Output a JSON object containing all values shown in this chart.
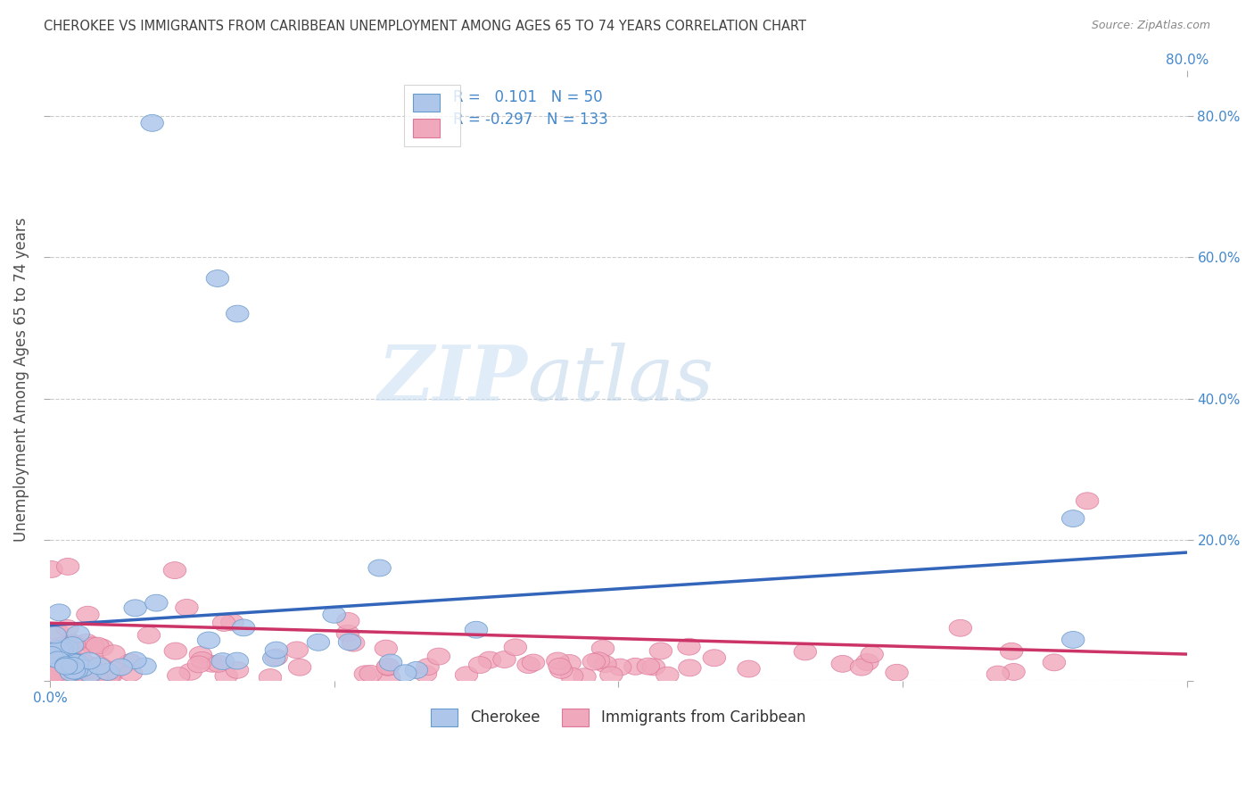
{
  "title": "CHEROKEE VS IMMIGRANTS FROM CARIBBEAN UNEMPLOYMENT AMONG AGES 65 TO 74 YEARS CORRELATION CHART",
  "source": "Source: ZipAtlas.com",
  "ylabel": "Unemployment Among Ages 65 to 74 years",
  "xlim": [
    0.0,
    0.8
  ],
  "ylim": [
    0.0,
    0.855
  ],
  "xticks": [
    0.0,
    0.2,
    0.4,
    0.6,
    0.8
  ],
  "yticks": [
    0.0,
    0.2,
    0.4,
    0.6,
    0.8
  ],
  "xtick_labels_left": [
    "0.0%",
    "",
    "",
    "",
    ""
  ],
  "xtick_labels_right": [
    "",
    "",
    "",
    "",
    "80.0%"
  ],
  "ytick_labels": [
    "",
    "20.0%",
    "40.0%",
    "60.0%",
    "80.0%"
  ],
  "cherokee_color": "#aec6ea",
  "caribbean_color": "#f0a8bc",
  "cherokee_edge_color": "#6699cc",
  "caribbean_edge_color": "#dd7799",
  "cherokee_line_color": "#3366bb",
  "caribbean_line_color": "#cc3366",
  "cherokee_R": 0.101,
  "cherokee_N": 50,
  "caribbean_R": -0.297,
  "caribbean_N": 133,
  "watermark_zip": "ZIP",
  "watermark_atlas": "atlas",
  "grid_color": "#cccccc",
  "background_color": "#ffffff",
  "legend_label_1": "Cherokee",
  "legend_label_2": "Immigrants from Caribbean",
  "title_color": "#404040",
  "axis_label_color": "#4488cc",
  "bottom_label_color": "#333333"
}
